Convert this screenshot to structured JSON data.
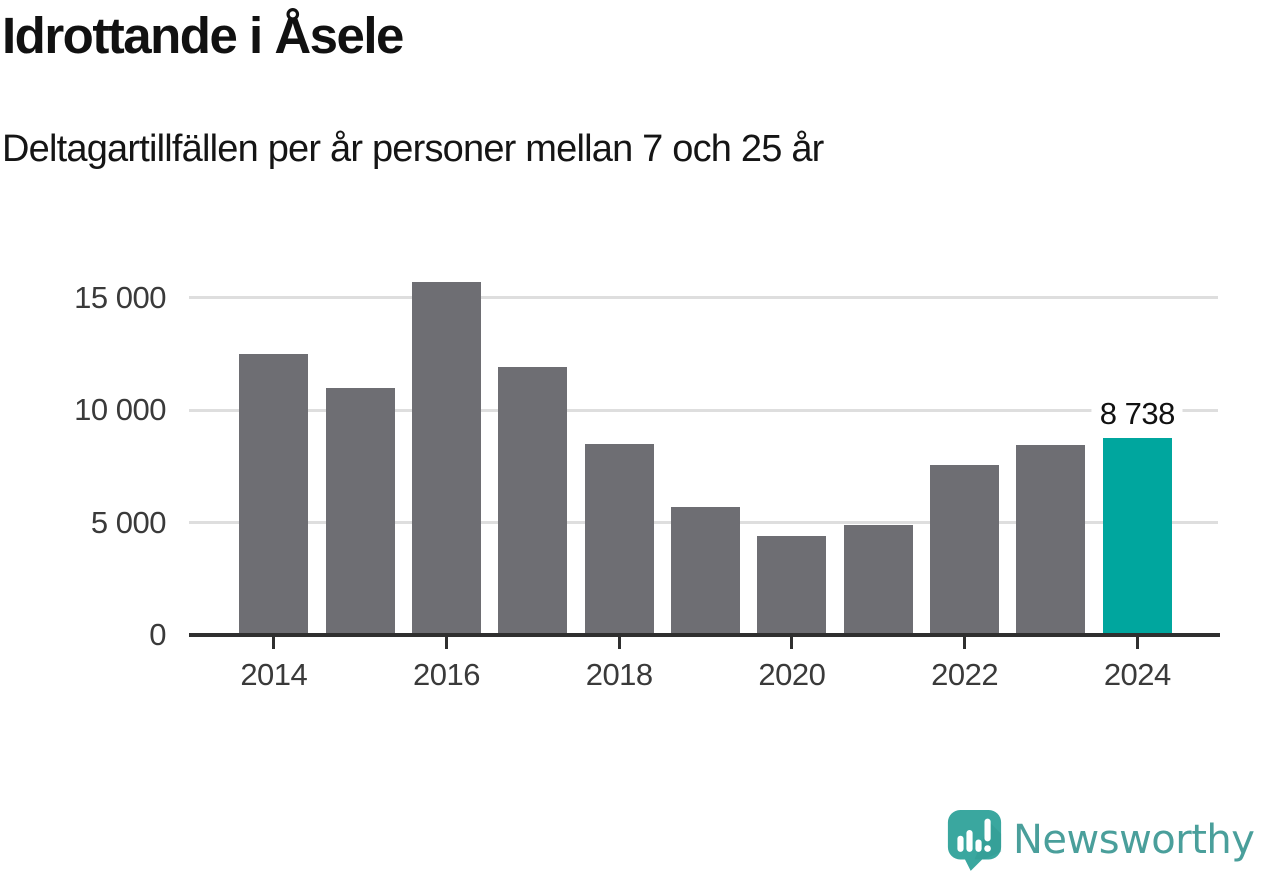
{
  "title": "Idrottande i Åsele",
  "subtitle": "Deltagartillfällen per år personer mellan 7 och 25 år",
  "chart_data": {
    "type": "bar",
    "title": "Idrottande i Åsele",
    "subtitle": "Deltagartillfällen per år personer mellan 7 och 25 år",
    "categories": [
      2014,
      2015,
      2016,
      2017,
      2018,
      2019,
      2020,
      2021,
      2022,
      2023,
      2024
    ],
    "values": [
      12500,
      11000,
      15700,
      11900,
      8500,
      5700,
      4400,
      4900,
      7550,
      8450,
      8738
    ],
    "highlight_index": 10,
    "annotation": {
      "index": 10,
      "label": "8 738"
    },
    "ylim": [
      0,
      15750
    ],
    "grid": "horizontal",
    "legend": "none",
    "yticks": [
      {
        "value": 0,
        "label": "0"
      },
      {
        "value": 5000,
        "label": "5 000"
      },
      {
        "value": 10000,
        "label": "10 000"
      },
      {
        "value": 15000,
        "label": "15 000"
      }
    ],
    "xticks": [
      {
        "year": 2014,
        "label": "2014"
      },
      {
        "year": 2016,
        "label": "2016"
      },
      {
        "year": 2018,
        "label": "2018"
      },
      {
        "year": 2020,
        "label": "2020"
      },
      {
        "year": 2022,
        "label": "2022"
      },
      {
        "year": 2024,
        "label": "2024"
      }
    ],
    "colors": {
      "bar": "#6e6e73",
      "highlight": "#00a69e",
      "gridline": "#dedede",
      "axis": "#2f2f2f",
      "tick_text": "#3a3a3a",
      "annotation_text": "#111111"
    }
  },
  "footer": {
    "brand": "Newsworthy",
    "brand_color": "#4a9f9b",
    "logo_icon": "newsworthy-speech-bubble-chart-icon",
    "logo_colors": {
      "bubble": "#3aa79f",
      "shade": "#2f948d",
      "marks": "#ffffff"
    }
  }
}
